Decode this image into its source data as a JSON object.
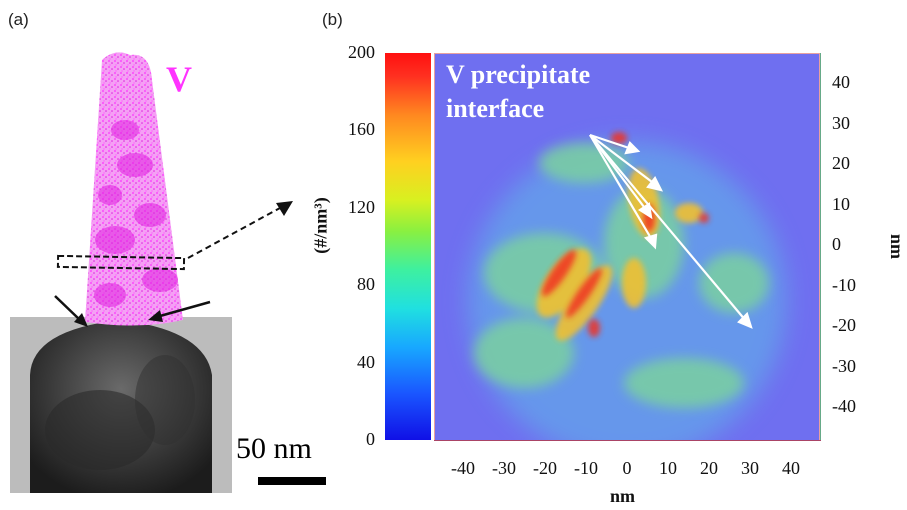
{
  "panel_a": {
    "label": "(a)",
    "element_label": "V",
    "scale_bar_label": "50 nm"
  },
  "panel_b": {
    "label": "(b)",
    "annotation_line1": "V precipitate",
    "annotation_line2": "interface",
    "colorbar": {
      "title": "(#/nm³)",
      "ticks": [
        "200",
        "160",
        "120",
        "80",
        "40",
        "0"
      ]
    },
    "x_axis": {
      "label": "nm",
      "ticks": [
        "-40",
        "-30",
        "-20",
        "-10",
        "0",
        "10",
        "20",
        "30",
        "40"
      ]
    },
    "y_axis": {
      "label": "nm",
      "ticks": [
        "40",
        "30",
        "20",
        "10",
        "0",
        "-10",
        "-20",
        "-30",
        "-40"
      ]
    }
  },
  "colors": {
    "map_background": "#6f6ff0",
    "atom_color": "#ff44ff",
    "arrow_color": "#ffffff"
  }
}
